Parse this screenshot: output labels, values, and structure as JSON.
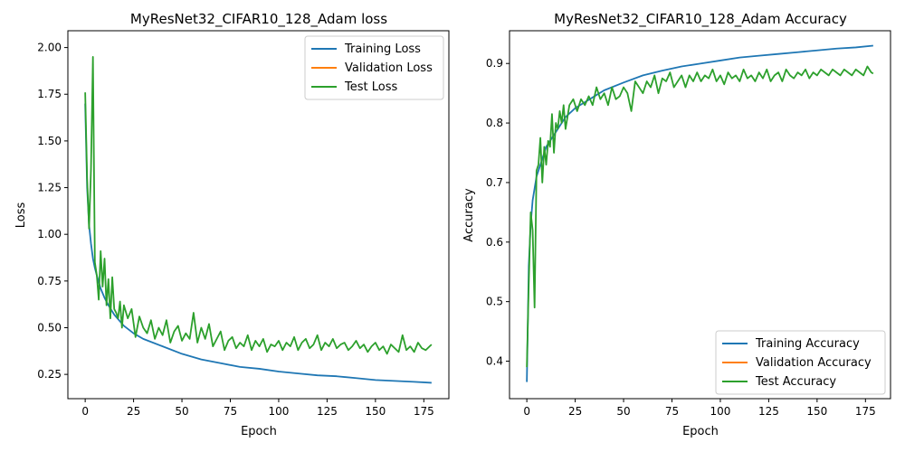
{
  "chart_data": [
    {
      "type": "line",
      "title": "MyResNet32_CIFAR10_128_Adam loss",
      "xlabel": "Epoch",
      "ylabel": "Loss",
      "xlim": [
        -8.95,
        187.95
      ],
      "ylim": [
        0.12,
        2.09
      ],
      "xticks": [
        0,
        25,
        50,
        75,
        100,
        125,
        150,
        175
      ],
      "yticks": [
        0.25,
        0.5,
        0.75,
        1.0,
        1.25,
        1.5,
        1.75,
        2.0
      ],
      "ytick_labels": [
        "0.25",
        "0.50",
        "0.75",
        "1.00",
        "1.25",
        "1.50",
        "1.75",
        "2.00"
      ],
      "legend": {
        "position": "top-right",
        "entries": [
          "Training Loss",
          "Validation Loss",
          "Test Loss"
        ]
      },
      "series": [
        {
          "name": "Training Loss",
          "color": "#1f77b4",
          "x": [
            0,
            1,
            2,
            3,
            4,
            5,
            6,
            8,
            10,
            12,
            15,
            20,
            25,
            30,
            40,
            50,
            60,
            70,
            80,
            90,
            100,
            110,
            120,
            130,
            140,
            150,
            160,
            170,
            179
          ],
          "y": [
            1.7,
            1.25,
            1.05,
            0.95,
            0.87,
            0.82,
            0.78,
            0.71,
            0.66,
            0.62,
            0.57,
            0.51,
            0.47,
            0.44,
            0.4,
            0.36,
            0.33,
            0.31,
            0.29,
            0.28,
            0.265,
            0.255,
            0.245,
            0.24,
            0.23,
            0.22,
            0.215,
            0.21,
            0.205
          ]
        },
        {
          "name": "Validation Loss",
          "color": "#ff7f0e",
          "x": [],
          "y": []
        },
        {
          "name": "Test Loss",
          "color": "#2ca02c",
          "x": [
            0,
            1,
            2,
            3,
            4,
            5,
            6,
            7,
            8,
            9,
            10,
            11,
            12,
            13,
            14,
            15,
            16,
            17,
            18,
            19,
            20,
            22,
            24,
            26,
            28,
            30,
            32,
            34,
            36,
            38,
            40,
            42,
            44,
            46,
            48,
            50,
            52,
            54,
            56,
            58,
            60,
            62,
            64,
            66,
            68,
            70,
            72,
            74,
            76,
            78,
            80,
            82,
            84,
            86,
            88,
            90,
            92,
            94,
            96,
            98,
            100,
            102,
            104,
            106,
            108,
            110,
            112,
            114,
            116,
            118,
            120,
            122,
            124,
            126,
            128,
            130,
            132,
            134,
            136,
            138,
            140,
            142,
            144,
            146,
            148,
            150,
            152,
            154,
            156,
            158,
            160,
            162,
            164,
            166,
            168,
            170,
            172,
            174,
            176,
            178,
            179
          ],
          "y": [
            1.76,
            1.3,
            1.03,
            1.35,
            1.95,
            0.85,
            0.78,
            0.65,
            0.91,
            0.72,
            0.87,
            0.62,
            0.76,
            0.55,
            0.77,
            0.6,
            0.58,
            0.55,
            0.64,
            0.5,
            0.62,
            0.55,
            0.6,
            0.45,
            0.56,
            0.5,
            0.47,
            0.54,
            0.44,
            0.5,
            0.46,
            0.54,
            0.42,
            0.48,
            0.51,
            0.43,
            0.47,
            0.44,
            0.58,
            0.42,
            0.5,
            0.44,
            0.52,
            0.4,
            0.44,
            0.48,
            0.38,
            0.43,
            0.45,
            0.39,
            0.42,
            0.4,
            0.46,
            0.38,
            0.43,
            0.4,
            0.44,
            0.37,
            0.41,
            0.4,
            0.43,
            0.38,
            0.42,
            0.4,
            0.45,
            0.38,
            0.42,
            0.44,
            0.39,
            0.41,
            0.46,
            0.38,
            0.42,
            0.4,
            0.44,
            0.39,
            0.41,
            0.42,
            0.38,
            0.4,
            0.43,
            0.39,
            0.41,
            0.37,
            0.4,
            0.42,
            0.38,
            0.4,
            0.36,
            0.41,
            0.39,
            0.37,
            0.46,
            0.38,
            0.4,
            0.37,
            0.42,
            0.39,
            0.38,
            0.4,
            0.41
          ]
        }
      ]
    },
    {
      "type": "line",
      "title": "MyResNet32_CIFAR10_128_Adam Accuracy",
      "xlabel": "Epoch",
      "ylabel": "Accuracy",
      "xlim": [
        -8.95,
        187.95
      ],
      "ylim": [
        0.337,
        0.955
      ],
      "xticks": [
        0,
        25,
        50,
        75,
        100,
        125,
        150,
        175
      ],
      "yticks": [
        0.4,
        0.5,
        0.6,
        0.7,
        0.8,
        0.9
      ],
      "ytick_labels": [
        "0.4",
        "0.5",
        "0.6",
        "0.7",
        "0.8",
        "0.9"
      ],
      "legend": {
        "position": "bottom-right",
        "entries": [
          "Training Accuracy",
          "Validation Accuracy",
          "Test Accuracy"
        ]
      },
      "series": [
        {
          "name": "Training Accuracy",
          "color": "#1f77b4",
          "x": [
            0,
            1,
            2,
            3,
            4,
            5,
            6,
            8,
            10,
            12,
            15,
            20,
            25,
            30,
            35,
            40,
            50,
            60,
            70,
            80,
            90,
            100,
            110,
            120,
            130,
            140,
            150,
            160,
            170,
            179
          ],
          "y": [
            0.365,
            0.56,
            0.63,
            0.67,
            0.69,
            0.71,
            0.72,
            0.74,
            0.76,
            0.77,
            0.785,
            0.81,
            0.825,
            0.835,
            0.845,
            0.855,
            0.868,
            0.88,
            0.888,
            0.895,
            0.9,
            0.905,
            0.91,
            0.913,
            0.916,
            0.919,
            0.922,
            0.925,
            0.927,
            0.93
          ]
        },
        {
          "name": "Validation Accuracy",
          "color": "#ff7f0e",
          "x": [],
          "y": []
        },
        {
          "name": "Test Accuracy",
          "color": "#2ca02c",
          "x": [
            0,
            1,
            2,
            3,
            4,
            5,
            6,
            7,
            8,
            9,
            10,
            11,
            12,
            13,
            14,
            15,
            16,
            17,
            18,
            19,
            20,
            22,
            24,
            26,
            28,
            30,
            32,
            34,
            36,
            38,
            40,
            42,
            44,
            46,
            48,
            50,
            52,
            54,
            56,
            58,
            60,
            62,
            64,
            66,
            68,
            70,
            72,
            74,
            76,
            78,
            80,
            82,
            84,
            86,
            88,
            90,
            92,
            94,
            96,
            98,
            100,
            102,
            104,
            106,
            108,
            110,
            112,
            114,
            116,
            118,
            120,
            122,
            124,
            126,
            128,
            130,
            132,
            134,
            136,
            138,
            140,
            142,
            144,
            146,
            148,
            150,
            152,
            154,
            156,
            158,
            160,
            162,
            164,
            166,
            168,
            170,
            172,
            174,
            176,
            178,
            179
          ],
          "y": [
            0.39,
            0.53,
            0.65,
            0.62,
            0.49,
            0.72,
            0.73,
            0.775,
            0.7,
            0.76,
            0.73,
            0.77,
            0.76,
            0.815,
            0.75,
            0.8,
            0.79,
            0.82,
            0.8,
            0.83,
            0.79,
            0.83,
            0.84,
            0.82,
            0.84,
            0.83,
            0.845,
            0.83,
            0.86,
            0.84,
            0.85,
            0.83,
            0.86,
            0.84,
            0.845,
            0.86,
            0.85,
            0.82,
            0.87,
            0.86,
            0.85,
            0.87,
            0.86,
            0.88,
            0.85,
            0.875,
            0.87,
            0.885,
            0.86,
            0.87,
            0.88,
            0.86,
            0.88,
            0.87,
            0.885,
            0.87,
            0.88,
            0.875,
            0.89,
            0.87,
            0.88,
            0.865,
            0.885,
            0.875,
            0.88,
            0.87,
            0.89,
            0.875,
            0.88,
            0.87,
            0.885,
            0.875,
            0.89,
            0.87,
            0.88,
            0.885,
            0.87,
            0.89,
            0.88,
            0.875,
            0.885,
            0.88,
            0.89,
            0.875,
            0.885,
            0.88,
            0.89,
            0.885,
            0.88,
            0.89,
            0.885,
            0.88,
            0.89,
            0.885,
            0.88,
            0.89,
            0.885,
            0.88,
            0.895,
            0.885,
            0.883
          ]
        }
      ]
    }
  ]
}
